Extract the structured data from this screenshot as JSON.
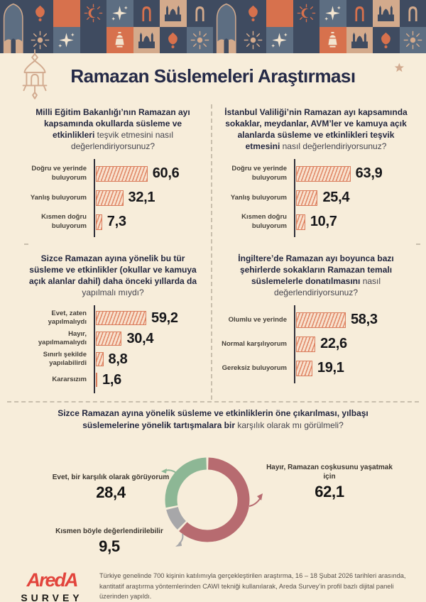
{
  "header": {
    "title": "Ramazan Süslemeleri Araştırması"
  },
  "border": {
    "colors": {
      "navy": "#3f4b60",
      "slate": "#5d6e82",
      "terracotta": "#d7714d",
      "tan": "#d3aa8c",
      "cream": "#f2e4cf"
    },
    "columns": [
      {
        "type": "arch"
      },
      {
        "top": {
          "bg": "navy",
          "icon": "ornament",
          "fg": "terracotta"
        },
        "bottom": {
          "bg": "navy",
          "icon": "sunburst",
          "fg": "tan"
        }
      },
      {
        "top": {
          "bg": "terracotta",
          "icon": "crescent",
          "fg": "tan"
        },
        "bottom": {
          "bg": "slate",
          "icon": "sparkle",
          "fg": "cream"
        }
      },
      {
        "top": {
          "bg": "navy",
          "icon": "sunmoon",
          "fg": "terracotta"
        },
        "bottom": {
          "bg": "navy",
          "icon": "crescent",
          "fg": "tan"
        }
      },
      {
        "top": {
          "bg": "slate",
          "icon": "sparkle",
          "fg": "cream"
        },
        "bottom": {
          "bg": "terracotta",
          "icon": "lantern",
          "fg": "cream"
        }
      },
      {
        "top": {
          "bg": "navy",
          "icon": "window",
          "fg": "terracotta"
        },
        "bottom": {
          "bg": "tan",
          "icon": "mosque",
          "fg": "navy"
        }
      },
      {
        "top": {
          "bg": "tan",
          "icon": "mosque",
          "fg": "navy"
        },
        "bottom": {
          "bg": "navy",
          "icon": "ornament",
          "fg": "terracotta"
        }
      },
      {
        "top": {
          "bg": "navy",
          "icon": "window",
          "fg": "tan"
        },
        "bottom": {
          "bg": "slate",
          "icon": "sunburst",
          "fg": "tan"
        }
      }
    ]
  },
  "chart_data": [
    {
      "type": "bar",
      "title_bold": "Milli Eğitim Bakanlığı’nın Ramazan ayı kapsamında okullarda süsleme ve etkinlikleri",
      "title_regular": " teşvik etmesini nasıl değerlendiriyorsunuz?",
      "categories": [
        "Doğru ve yerinde buluyorum",
        "Yanlış buluyorum",
        "Kısmen doğru buluyorum"
      ],
      "values": [
        "60,6",
        "32,1",
        "7,3"
      ],
      "bar_color": "#dd8060",
      "orientation": "horizontal",
      "xlim": [
        0,
        70
      ]
    },
    {
      "type": "bar",
      "title_bold": "İstanbul Valiliği’nin Ramazan ayı kapsamında sokaklar, meydanlar, AVM’ler ve kamuya açık alanlarda süsleme ve etkinlikleri teşvik etmesini",
      "title_regular": " nasıl değerlendiriyorsunuz?",
      "categories": [
        "Doğru ve yerinde buluyorum",
        "Yanlış buluyorum",
        "Kısmen doğru buluyorum"
      ],
      "values": [
        "63,9",
        "25,4",
        "10,7"
      ],
      "bar_color": "#dd8060",
      "orientation": "horizontal",
      "xlim": [
        0,
        70
      ]
    },
    {
      "type": "bar",
      "title_bold": "Sizce Ramazan ayına yönelik bu tür süsleme ve etkinlikler (okullar ve kamuya açık alanlar dahil) daha önceki yıllarda da",
      "title_regular": " yapılmalı mıydı?",
      "categories": [
        "Evet, zaten yapılmalıydı",
        "Hayır, yapılmamalıydı",
        "Sınırlı şekilde yapılabilirdi",
        "Kararsızım"
      ],
      "values": [
        "59,2",
        "30,4",
        "8,8",
        "1,6"
      ],
      "bar_color": "#dd8060",
      "orientation": "horizontal",
      "xlim": [
        0,
        70
      ]
    },
    {
      "type": "bar",
      "title_bold": "İngiltere’de Ramazan ayı boyunca bazı şehirlerde sokakların Ramazan temalı süslemelerle donatılmasını",
      "title_regular": " nasıl değerlendiriyorsunuz?",
      "categories": [
        "Olumlu ve yerinde",
        "Normal karşılıyorum",
        "Gereksiz buluyorum"
      ],
      "values": [
        "58,3",
        "22,6",
        "19,1"
      ],
      "bar_color": "#dd8060",
      "orientation": "horizontal",
      "xlim": [
        0,
        70
      ]
    },
    {
      "type": "donut",
      "title_bold": "Sizce Ramazan ayına yönelik süsleme ve etkinliklerin öne çıkarılması, yılbaşı süslemelerine yönelik tartışmalara bir",
      "title_regular": " karşılık olarak mı görülmeli?",
      "segments": [
        {
          "label": "Hayır, Ramazan coşkusunu yaşatmak için",
          "value": "62,1",
          "color": "#b76b70"
        },
        {
          "label": "Kısmen böyle değerlendirilebilir",
          "value": "9,5",
          "color": "#a7a7a9"
        },
        {
          "label": "Evet, bir karşılık olarak görüyorum",
          "value": "28,4",
          "color": "#8db795"
        }
      ]
    }
  ],
  "footer": {
    "brand_line1": "AredA",
    "brand_line2": "SURVEY",
    "note": "Türkiye genelinde 700 kişinin katılımıyla gerçekleştirilen araştırma, 16 – 18 Şubat 2026 tarihleri arasında, kantitatif araştırma yöntemlerinden CAWI tekniği kullanılarak, Areda Survey’in profil bazlı dijital paneli üzerinden yapıldı."
  }
}
